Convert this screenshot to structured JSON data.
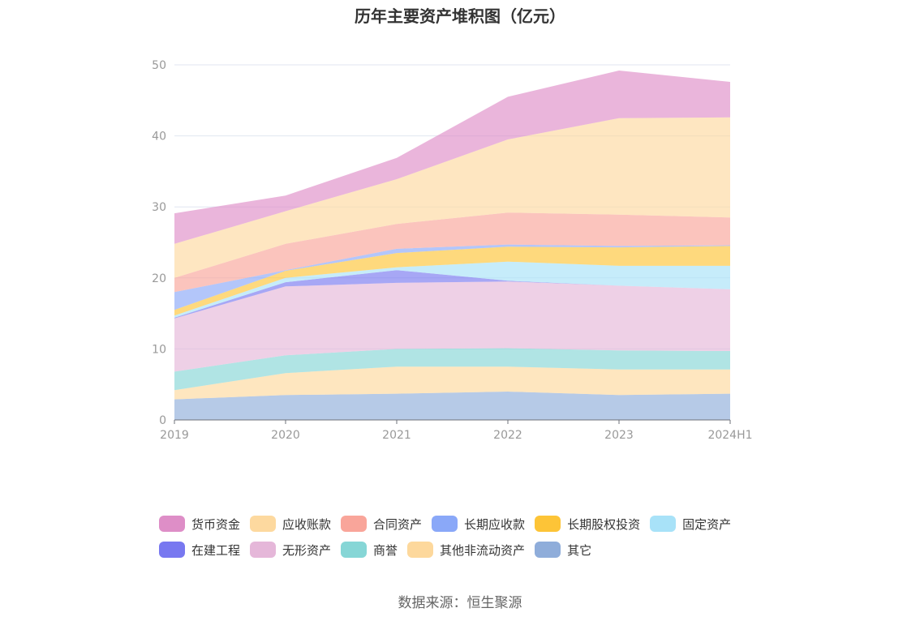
{
  "source_text": "数据来源：恒生聚源",
  "chart_data": {
    "type": "area",
    "stacked": true,
    "title": "历年主要资产堆积图（亿元）",
    "xlabel": "",
    "ylabel": "",
    "x": [
      "2019",
      "2020",
      "2021",
      "2022",
      "2023",
      "2024H1"
    ],
    "ylim": [
      0,
      50
    ],
    "yticks": [
      "0",
      "10",
      "20",
      "30",
      "40",
      "50"
    ],
    "grid": true,
    "legend_position": "bottom",
    "series": [
      {
        "name": "其它",
        "color": "#8fadda",
        "values": [
          2.9,
          3.5,
          3.7,
          4.0,
          3.5,
          3.7
        ]
      },
      {
        "name": "其他非流动资产",
        "color": "#fdd89c",
        "values": [
          1.3,
          3.1,
          3.8,
          3.5,
          3.6,
          3.4
        ]
      },
      {
        "name": "商誉",
        "color": "#86d6d6",
        "values": [
          2.6,
          2.5,
          2.5,
          2.6,
          2.7,
          2.6
        ]
      },
      {
        "name": "无形资产",
        "color": "#e5b7d9",
        "values": [
          7.5,
          9.7,
          9.3,
          9.4,
          9.1,
          8.7
        ]
      },
      {
        "name": "在建工程",
        "color": "#7878f0",
        "values": [
          0.1,
          0.6,
          1.8,
          0.1,
          0.0,
          0.0
        ]
      },
      {
        "name": "固定资产",
        "color": "#a8e2f8",
        "values": [
          0.3,
          0.6,
          0.4,
          2.7,
          2.8,
          3.3
        ]
      },
      {
        "name": "长期股权投资",
        "color": "#fdc437",
        "values": [
          0.8,
          1.0,
          2.0,
          2.1,
          2.6,
          2.8
        ]
      },
      {
        "name": "长期应收款",
        "color": "#8aa8f8",
        "values": [
          2.5,
          0.1,
          0.6,
          0.3,
          0.2,
          0.1
        ]
      },
      {
        "name": "合同资产",
        "color": "#f9a59a",
        "values": [
          2.0,
          3.7,
          3.5,
          4.5,
          4.4,
          3.9
        ]
      },
      {
        "name": "应收账款",
        "color": "#fdd99f",
        "values": [
          4.8,
          4.6,
          6.3,
          10.3,
          13.6,
          14.1
        ]
      },
      {
        "name": "货币资金",
        "color": "#de8ec7",
        "values": [
          4.3,
          2.2,
          3.0,
          6.0,
          6.7,
          5.0
        ]
      }
    ],
    "legend_order": [
      "货币资金",
      "应收账款",
      "合同资产",
      "长期应收款",
      "长期股权投资",
      "固定资产",
      "在建工程",
      "无形资产",
      "商誉",
      "其他非流动资产",
      "其它"
    ]
  }
}
